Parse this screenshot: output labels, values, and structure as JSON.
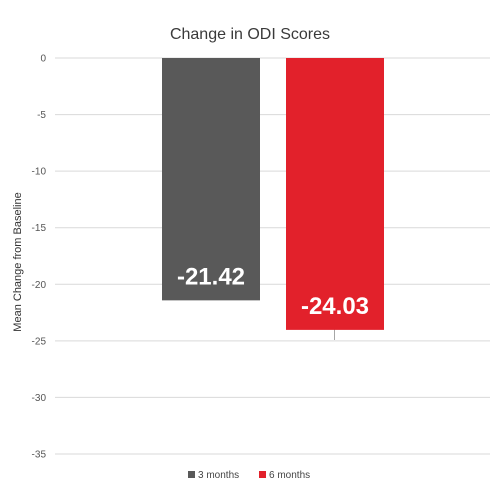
{
  "chart_data": {
    "type": "bar",
    "title": "Change in ODI Scores",
    "xlabel": "",
    "ylabel": "Mean Change from Baseline",
    "ylim": [
      -35,
      0
    ],
    "yticks": [
      0,
      -5,
      -10,
      -15,
      -20,
      -25,
      -30,
      -35
    ],
    "grid": true,
    "legend_position": "bottom",
    "series": [
      {
        "name": "3 months",
        "value": -21.42,
        "label": "-21.42",
        "color": "#595959"
      },
      {
        "name": "6 months",
        "value": -24.03,
        "label": "-24.03",
        "color": "#e2212b"
      }
    ]
  }
}
